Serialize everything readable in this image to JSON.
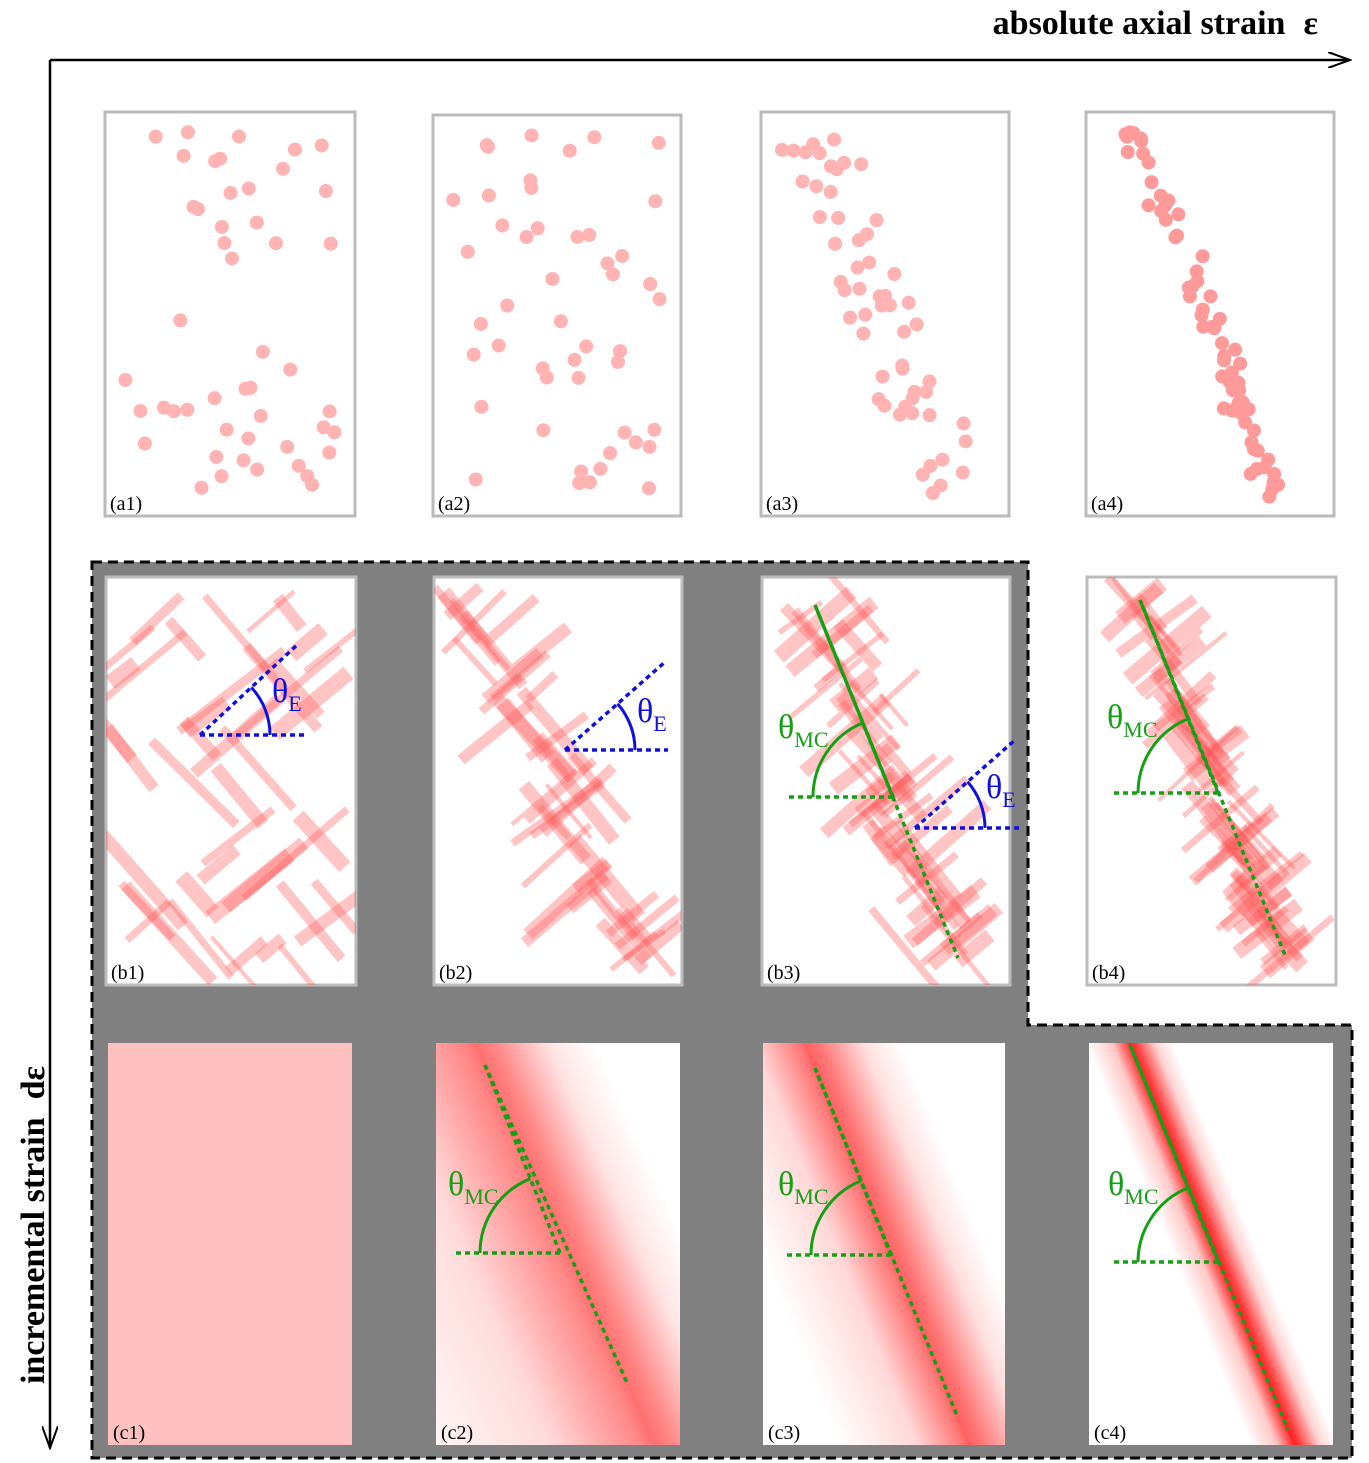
{
  "axes": {
    "horizontal": "absolute axial strain",
    "horizontal_symbol": "ε",
    "vertical": "incremental strain",
    "vertical_symbol": "dε"
  },
  "panels": {
    "a": [
      "(a1)",
      "(a2)",
      "(a3)",
      "(a4)"
    ],
    "b": [
      "(b1)",
      "(b2)",
      "(b3)",
      "(b4)"
    ],
    "c": [
      "(c1)",
      "(c2)",
      "(c3)",
      "(c4)"
    ]
  },
  "angle_labels": [
    {
      "symbol": "θ",
      "sub": "E"
    },
    {
      "symbol": "θ",
      "sub": "E"
    },
    {
      "symbol": "θ",
      "sub": "MC"
    },
    {
      "symbol": "θ",
      "sub": "E"
    },
    {
      "symbol": "θ",
      "sub": "MC"
    },
    {
      "symbol": "θ",
      "sub": "MC"
    },
    {
      "symbol": "θ",
      "sub": "MC"
    },
    {
      "symbol": "θ",
      "sub": "MC"
    }
  ]
}
